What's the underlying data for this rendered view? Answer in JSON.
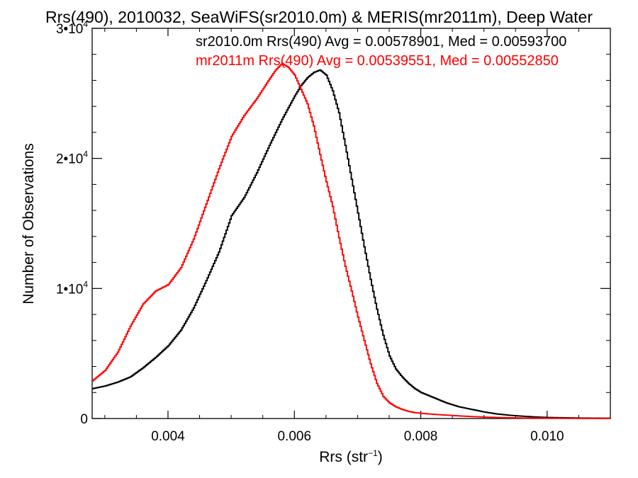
{
  "chart_data": {
    "type": "line",
    "title": "Rrs(490), 2010032, SeaWiFS(sr2010.0m) & MERIS(mr2011m), Deep Water",
    "xlabel_main": "Rrs (str",
    "xlabel_sup": "−1",
    "xlabel_end": ")",
    "ylabel": "Number of Observations",
    "xlim": [
      0.0028,
      0.011
    ],
    "ylim": [
      0,
      30000
    ],
    "x_ticks": [
      {
        "value": 0.004,
        "label": "0.004"
      },
      {
        "value": 0.006,
        "label": "0.006"
      },
      {
        "value": 0.008,
        "label": "0.008"
      },
      {
        "value": 0.01,
        "label": "0.010"
      }
    ],
    "y_ticks": [
      {
        "value": 0,
        "base": "0",
        "exp": ""
      },
      {
        "value": 10000,
        "base": "1•10",
        "exp": "4"
      },
      {
        "value": 20000,
        "base": "2•10",
        "exp": "4"
      },
      {
        "value": 30000,
        "base": "3•10",
        "exp": "4"
      }
    ],
    "legend_placement": "top-right",
    "series": [
      {
        "name": "sr2010.0m",
        "legend": "sr2010.0m Rrs(490) Avg = 0.00578901, Med = 0.00593700",
        "color": "#000000",
        "x": [
          0.0028,
          0.003,
          0.0032,
          0.0034,
          0.0036,
          0.0038,
          0.004,
          0.0042,
          0.0044,
          0.0046,
          0.0048,
          0.005,
          0.0052,
          0.0054,
          0.0056,
          0.0058,
          0.006,
          0.0061,
          0.0062,
          0.0063,
          0.0064,
          0.0065,
          0.0066,
          0.0067,
          0.0068,
          0.0069,
          0.007,
          0.0071,
          0.0072,
          0.0073,
          0.0074,
          0.0075,
          0.0076,
          0.0077,
          0.0078,
          0.0079,
          0.008,
          0.0082,
          0.0084,
          0.0086,
          0.0088,
          0.009,
          0.0092,
          0.0094,
          0.0096,
          0.0098,
          0.01,
          0.0105,
          0.011
        ],
        "y": [
          2300,
          2500,
          2800,
          3200,
          3900,
          4700,
          5600,
          6800,
          8500,
          10600,
          12800,
          15600,
          17000,
          18900,
          21000,
          23000,
          24800,
          25600,
          26200,
          26600,
          26800,
          26400,
          25200,
          23500,
          21000,
          18400,
          15800,
          13200,
          10700,
          8400,
          6400,
          4800,
          3800,
          3200,
          2700,
          2300,
          2000,
          1600,
          1200,
          900,
          700,
          500,
          350,
          250,
          180,
          120,
          80,
          40,
          20
        ]
      },
      {
        "name": "mr2011m",
        "legend": "mr2011m Rrs(490) Avg = 0.00539551, Med = 0.00552850",
        "color": "#ff0000",
        "x": [
          0.0028,
          0.003,
          0.0032,
          0.0034,
          0.0036,
          0.0038,
          0.004,
          0.0042,
          0.0044,
          0.0046,
          0.0048,
          0.005,
          0.0052,
          0.0054,
          0.0056,
          0.0057,
          0.0058,
          0.0059,
          0.006,
          0.0061,
          0.0062,
          0.0063,
          0.0064,
          0.0065,
          0.0066,
          0.0067,
          0.0068,
          0.0069,
          0.007,
          0.0071,
          0.0072,
          0.0073,
          0.0074,
          0.0075,
          0.0076,
          0.0077,
          0.0078,
          0.0079,
          0.008,
          0.0082,
          0.0084,
          0.0086,
          0.0088,
          0.009,
          0.0092,
          0.0094,
          0.0096,
          0.01,
          0.0105,
          0.011
        ],
        "y": [
          2900,
          3700,
          5100,
          7100,
          8800,
          9800,
          10300,
          11600,
          13800,
          16500,
          19200,
          21700,
          23300,
          24600,
          26100,
          26800,
          27300,
          27000,
          26400,
          25300,
          24200,
          22500,
          20300,
          18200,
          16300,
          13900,
          11700,
          9800,
          7800,
          6000,
          4200,
          2700,
          1700,
          1200,
          900,
          700,
          550,
          450,
          400,
          320,
          260,
          200,
          150,
          110,
          80,
          60,
          40,
          25,
          15,
          10
        ]
      }
    ]
  }
}
